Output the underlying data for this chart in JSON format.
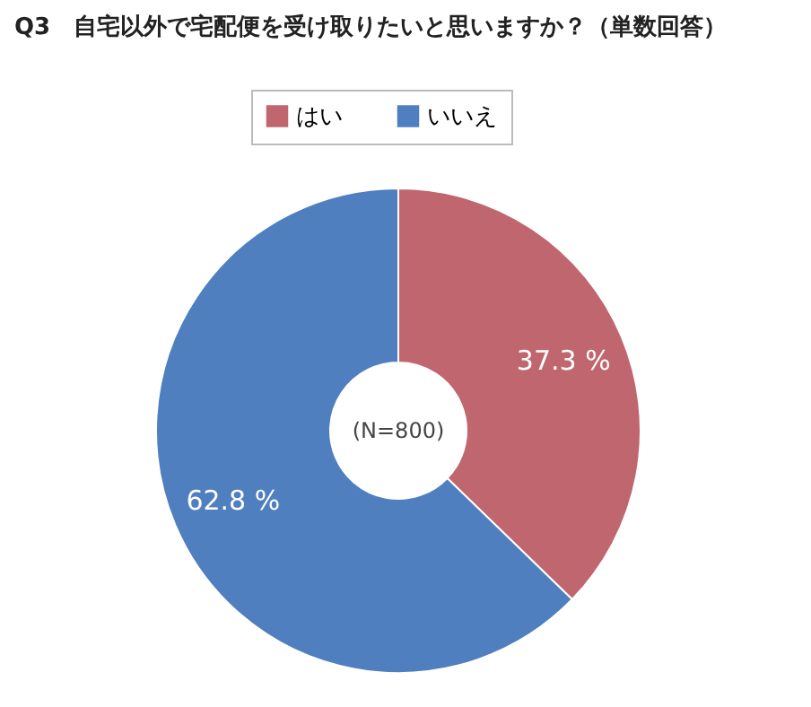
{
  "chart_data": {
    "type": "donut",
    "title": "Q3　自宅以外で宅配便を受け取りたいと思いますか？（単数回答）",
    "categories": [
      "はい",
      "いいえ"
    ],
    "values": [
      37.3,
      62.8
    ],
    "colors": [
      "#c0666e",
      "#4f7fbe"
    ],
    "value_labels": [
      "37.3 %",
      "62.8 %"
    ],
    "annotations": [
      "(N=800)"
    ],
    "legend": "top"
  }
}
